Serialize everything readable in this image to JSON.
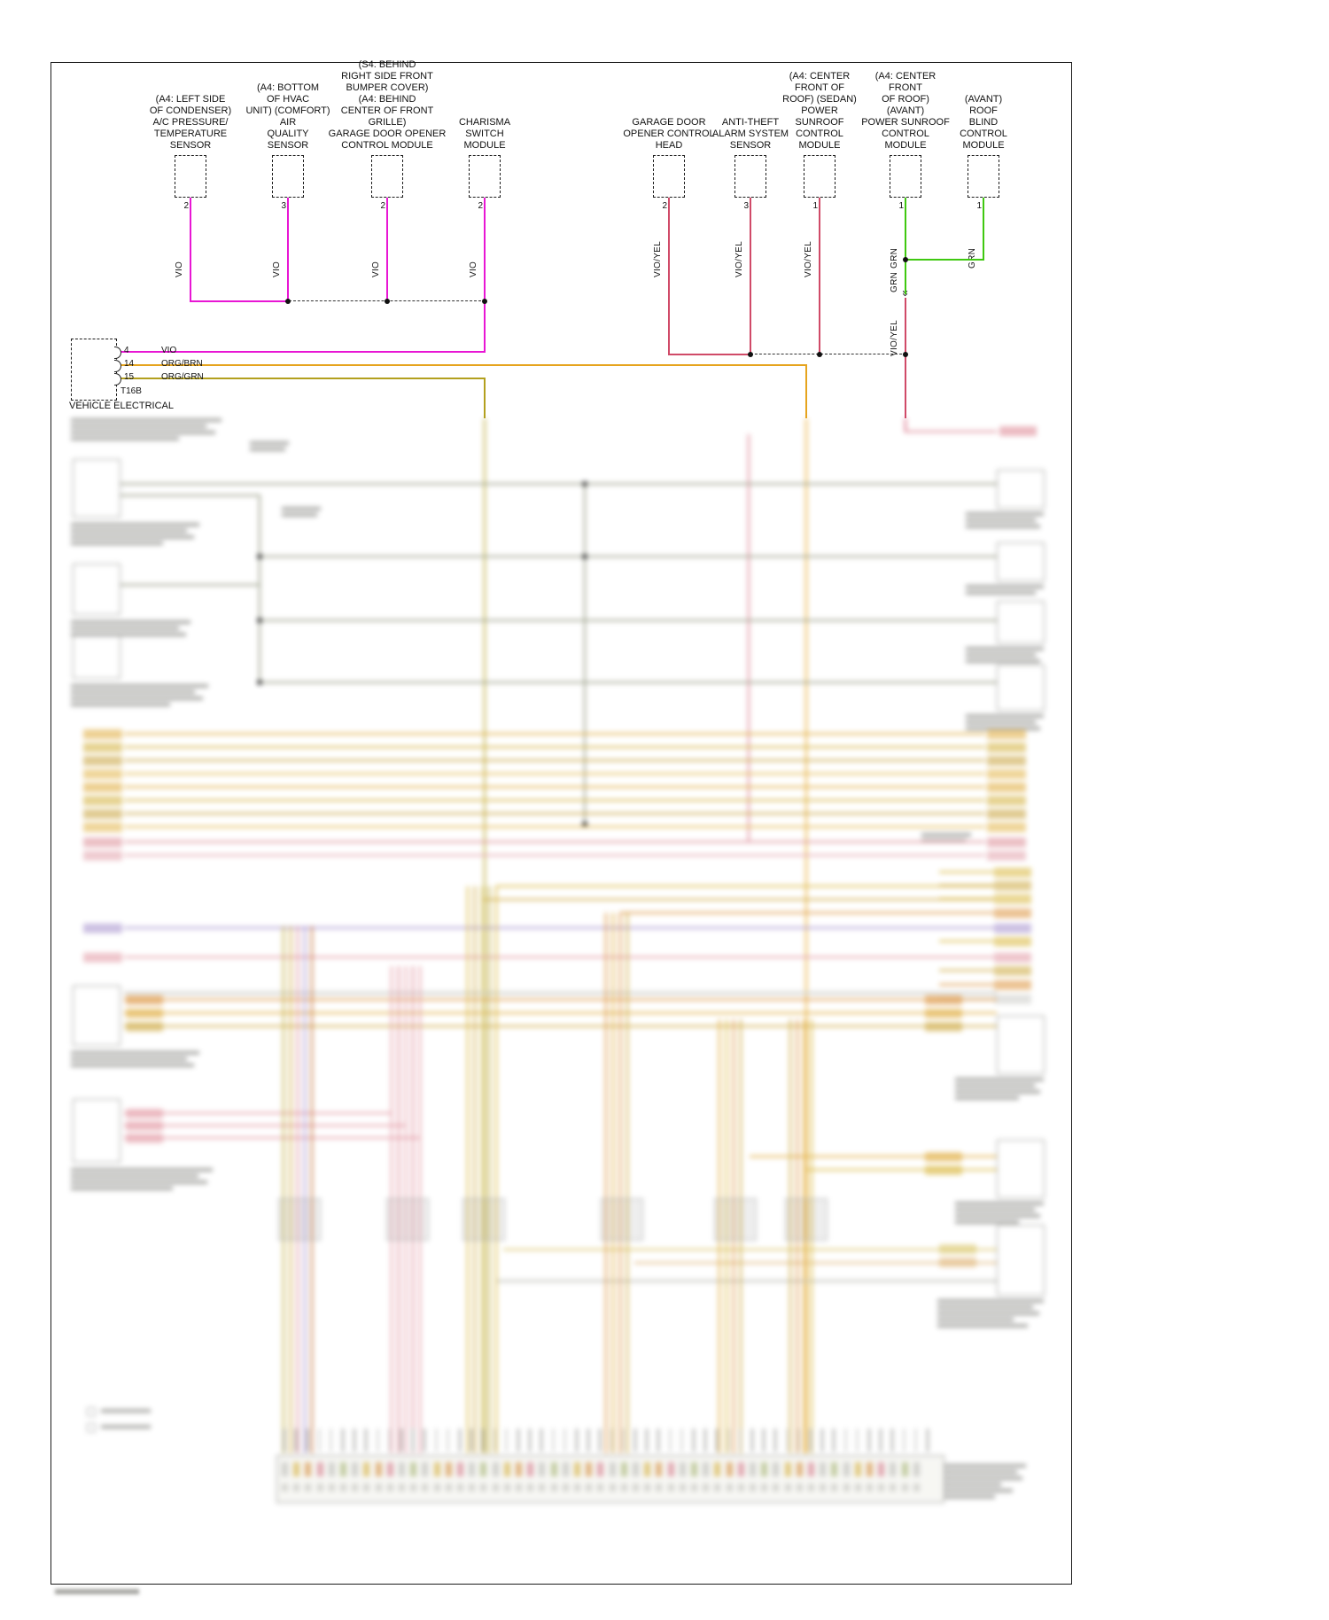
{
  "colors": {
    "vio": "#e816d4",
    "vioyel": "#d04a68",
    "grn": "#3fc810",
    "org_brn": "#e6a41e",
    "org_grn": "#b3a01e",
    "dash": "#333333"
  },
  "components": [
    {
      "label": "(A4: LEFT SIDE\nOF CONDENSER)\nA/C PRESSURE/\nTEMPERATURE\nSENSOR",
      "pin": "2",
      "wire": "VIO"
    },
    {
      "label": "(A4: BOTTOM\nOF HVAC\nUNIT) (COMFORT)\nAIR\nQUALITY\nSENSOR",
      "pin": "3",
      "wire": "VIO"
    },
    {
      "label": "(S4: BEHIND\nRIGHT SIDE FRONT\nBUMPER COVER)\n(A4: BEHIND\nCENTER OF FRONT GRILLE)\nGARAGE DOOR OPENER\nCONTROL MODULE",
      "pin": "2",
      "wire": "VIO"
    },
    {
      "label": "CHARISMA\nSWITCH\nMODULE",
      "pin": "2",
      "wire": "VIO"
    },
    {
      "label": "GARAGE DOOR\nOPENER CONTROL\nHEAD",
      "pin": "2",
      "wire": "VIO/YEL"
    },
    {
      "label": "ANTI-THEFT\nALARM SYSTEM\nSENSOR",
      "pin": "3",
      "wire": "VIO/YEL"
    },
    {
      "label": "(A4: CENTER\nFRONT OF\nROOF) (SEDAN)\nPOWER\nSUNROOF\nCONTROL\nMODULE",
      "pin": "1",
      "wire": "VIO/YEL"
    },
    {
      "label": "(A4: CENTER\nFRONT\nOF ROOF)\n(AVANT)\nPOWER SUNROOF\nCONTROL\nMODULE",
      "pin": "1",
      "wire": "GRN"
    },
    {
      "label": "(AVANT)\nROOF\nBLIND\nCONTROL\nMODULE",
      "pin": "1",
      "wire": "GRN"
    }
  ],
  "inline_labels": {
    "grn": "GRN",
    "vioyel": "VIO/YEL"
  },
  "connector": {
    "name": "VEHICLE ELECTRICAL",
    "id": "T16B",
    "pins": [
      {
        "num": "4",
        "wire": "VIO"
      },
      {
        "num": "14",
        "wire": "ORG/BRN"
      },
      {
        "num": "15",
        "wire": "ORG/GRN"
      }
    ]
  }
}
